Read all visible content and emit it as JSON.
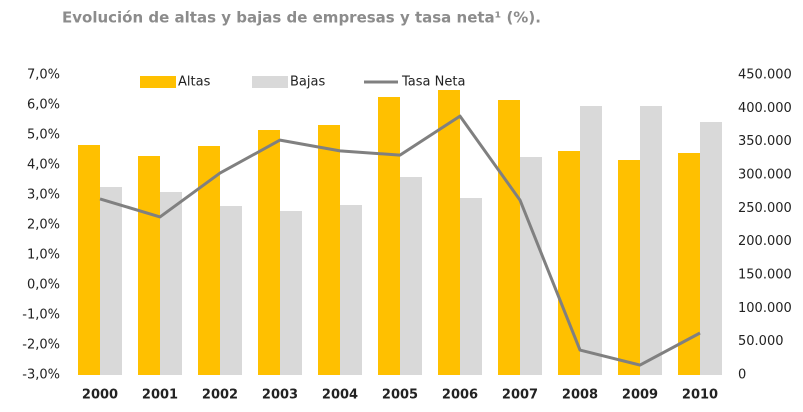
{
  "chart_data": {
    "type": "bar",
    "title": "Evolución de altas y bajas de empresas y tasa neta¹ (%).",
    "categories": [
      "2000",
      "2001",
      "2002",
      "2003",
      "2004",
      "2005",
      "2006",
      "2007",
      "2008",
      "2009",
      "2010"
    ],
    "series": [
      {
        "name": "Altas",
        "type": "bar",
        "axis": "y2",
        "color": "#ffc000",
        "values": [
          345000,
          328500,
          343500,
          367500,
          375000,
          417000,
          427500,
          412500,
          336000,
          322500,
          333000
        ]
      },
      {
        "name": "Bajas",
        "type": "bar",
        "axis": "y2",
        "color": "#d9d9d9",
        "values": [
          282000,
          274500,
          253500,
          246000,
          255000,
          297000,
          265500,
          327000,
          403500,
          403500,
          379500
        ]
      },
      {
        "name": "Tasa Neta",
        "type": "line",
        "color": "#808080",
        "values": [
          2.87,
          2.27,
          3.73,
          4.83,
          4.47,
          4.33,
          5.63,
          2.83,
          -2.17,
          -2.67,
          -1.6
        ]
      }
    ],
    "ylim": [
      -3,
      7
    ],
    "yticks": [
      {
        "value": 7,
        "label": "7,0%"
      },
      {
        "value": 6,
        "label": "6,0%"
      },
      {
        "value": 5,
        "label": "5,0%"
      },
      {
        "value": 4,
        "label": "4,0%"
      },
      {
        "value": 3,
        "label": "3,0%"
      },
      {
        "value": 2,
        "label": "2,0%"
      },
      {
        "value": 1,
        "label": "1,0%"
      },
      {
        "value": 0,
        "label": "0,0%"
      },
      {
        "value": -1,
        "label": "-1,0%"
      },
      {
        "value": -2,
        "label": "-2,0%"
      },
      {
        "value": -3,
        "label": "-3,0%"
      }
    ],
    "y2lim": [
      0,
      450000
    ],
    "y2ticks": [
      {
        "value": 450000,
        "label": "450.000"
      },
      {
        "value": 400000,
        "label": "400.000"
      },
      {
        "value": 350000,
        "label": "350.000"
      },
      {
        "value": 300000,
        "label": "300.000"
      },
      {
        "value": 250000,
        "label": "250.000"
      },
      {
        "value": 200000,
        "label": "200.000"
      },
      {
        "value": 150000,
        "label": "150.000"
      },
      {
        "value": 100000,
        "label": "100.000"
      },
      {
        "value": 50000,
        "label": "50.000"
      },
      0
    ],
    "legend": "top"
  }
}
